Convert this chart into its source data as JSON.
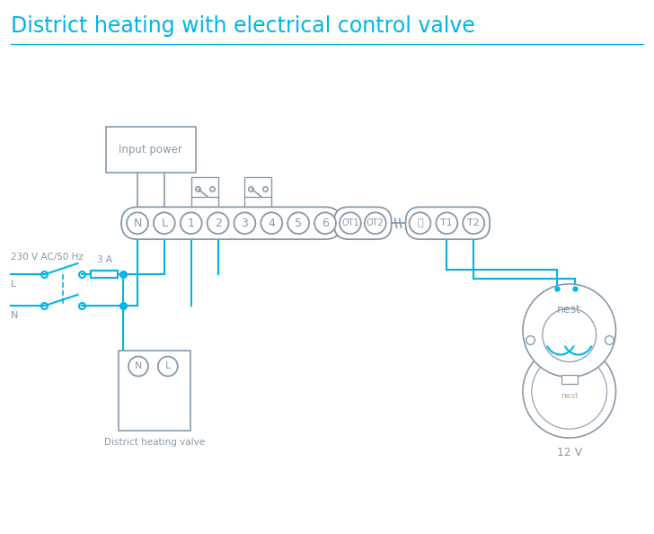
{
  "title": "District heating with electrical control valve",
  "title_color": "#00b5e2",
  "line_color": "#00b5e2",
  "gray": "#8899aa",
  "bg": "#ffffff",
  "terminal_main": [
    "N",
    "L",
    "1",
    "2",
    "3",
    "4",
    "5",
    "6"
  ],
  "terminal_ot": [
    "OT1",
    "OT2"
  ],
  "terminal_right": [
    "⏚",
    "T1",
    "T2"
  ],
  "label_voltage": "230 V AC/50 Hz",
  "label_fuse": "3 A",
  "label_L": "L",
  "label_N": "N",
  "label_input": "Input power",
  "label_valve": "District heating valve",
  "label_12v": "12 V"
}
